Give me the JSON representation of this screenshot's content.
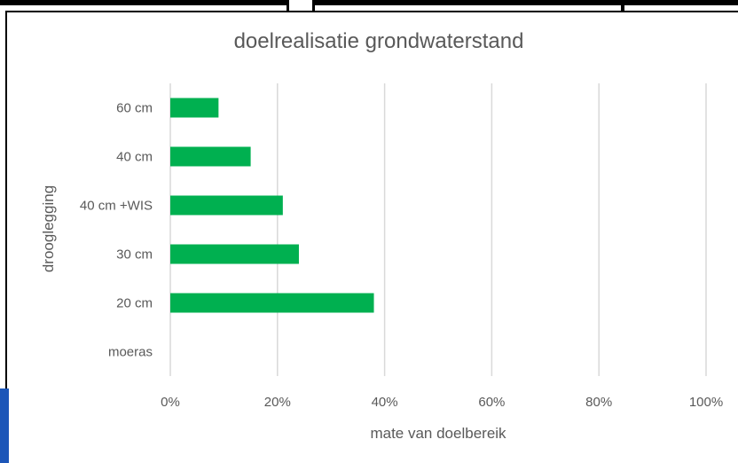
{
  "chart_data": {
    "type": "bar",
    "orientation": "horizontal",
    "title": "doelrealisatie grondwaterstand",
    "xlabel": "mate van doelbereik",
    "ylabel": "drooglegging",
    "categories": [
      "60 cm",
      "40 cm",
      "40 cm +WIS",
      "30 cm",
      "20 cm",
      "moeras"
    ],
    "values": [
      0.09,
      0.15,
      0.21,
      0.24,
      0.38,
      0
    ],
    "xlim": [
      0,
      1
    ],
    "xticks": [
      "0%",
      "20%",
      "40%",
      "60%",
      "80%",
      "100%"
    ],
    "grid": "vertical",
    "color": "#00b050"
  }
}
